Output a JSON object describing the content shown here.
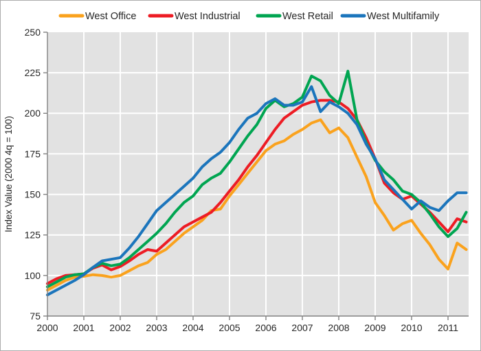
{
  "chart_data": {
    "type": "line",
    "title": "",
    "ylabel": "Index Value (2000 4q = 100)",
    "ylim": [
      75,
      250
    ],
    "ytick_step": 25,
    "x_tick_years": [
      2000,
      2001,
      2002,
      2003,
      2004,
      2005,
      2006,
      2007,
      2008,
      2009,
      2010,
      2011
    ],
    "x_frequency": "quarterly",
    "x_start": "2000Q1",
    "x_end": "2011Q3",
    "grid": true,
    "legend_position": "top",
    "plot_bg_color": "#e2e2e2",
    "gridline_color": "#ffffff",
    "axis_color": "#808080",
    "series": [
      {
        "name": "West Office",
        "color": "#FAA21D",
        "values": [
          91,
          94,
          97,
          99,
          99.5,
          100.5,
          100,
          99,
          100,
          103,
          106,
          108,
          113,
          116,
          121,
          126,
          130,
          134,
          140,
          141,
          149,
          156,
          163,
          170,
          177,
          181,
          183,
          187,
          190,
          194,
          196,
          188,
          191,
          185,
          173,
          161,
          145,
          137,
          128,
          132,
          134,
          126,
          119,
          110,
          104,
          120,
          116
        ]
      },
      {
        "name": "West Industrial",
        "color": "#ED1C24",
        "values": [
          95,
          98,
          100,
          100.5,
          101,
          104.5,
          106.5,
          103.5,
          105.5,
          109,
          113,
          116,
          115,
          120,
          125,
          130,
          133,
          136,
          139,
          145,
          152,
          159,
          167,
          174,
          182,
          190,
          197,
          201,
          205,
          207,
          208,
          208,
          207,
          203,
          196,
          185,
          172,
          157,
          151,
          147,
          149,
          144,
          139,
          133,
          127,
          135,
          133
        ]
      },
      {
        "name": "West Retail",
        "color": "#00A551",
        "values": [
          93,
          96,
          99,
          100.5,
          101,
          105,
          107.5,
          106,
          107,
          111,
          116,
          121,
          126,
          132,
          139,
          145,
          149,
          156,
          160,
          163,
          170,
          178,
          186,
          193,
          203,
          208,
          204,
          206,
          210,
          223,
          220,
          211,
          206,
          226,
          196,
          182,
          171,
          164,
          159,
          152,
          150,
          145,
          138,
          130,
          124,
          129,
          139
        ]
      },
      {
        "name": "West Multifamily",
        "color": "#1B75BC",
        "values": [
          88,
          91,
          94,
          97,
          100.5,
          105,
          109,
          110,
          111,
          117,
          124,
          132,
          140,
          145,
          150,
          155,
          160,
          167,
          172,
          176,
          182,
          190,
          197,
          200,
          206,
          209,
          205,
          205,
          207,
          216.5,
          201,
          207,
          204,
          200,
          193,
          181,
          172,
          159,
          153,
          147,
          141,
          146,
          142,
          140,
          146,
          151,
          151
        ]
      }
    ]
  }
}
